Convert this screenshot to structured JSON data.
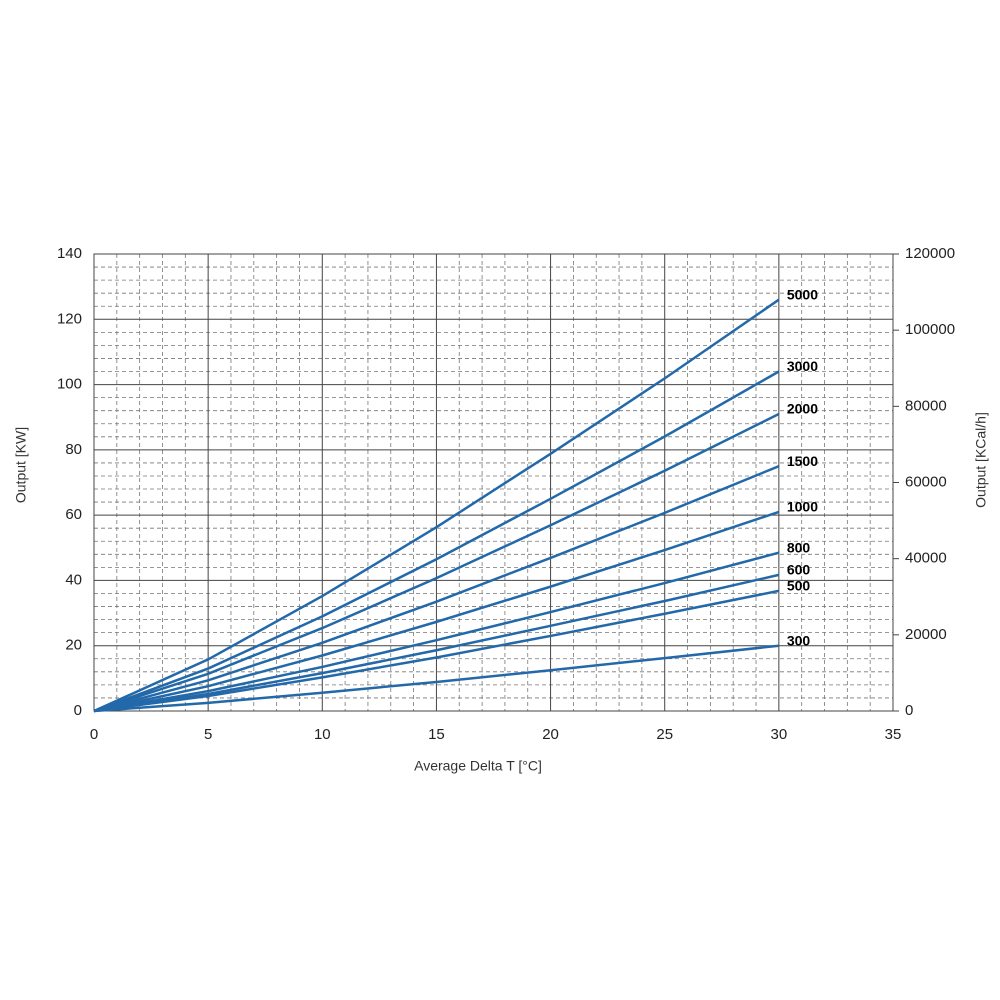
{
  "chart_data": {
    "type": "line",
    "xlabel": "Average Delta T [°C]",
    "ylabel": "Output [KW]",
    "y2label": "Output [KCal/h]",
    "x": [
      0,
      5,
      10,
      15,
      20,
      25,
      30
    ],
    "xlim": [
      0,
      35
    ],
    "xticks": [
      0,
      5,
      10,
      15,
      20,
      25,
      30,
      35
    ],
    "ylim": [
      0,
      140
    ],
    "yticks": [
      0,
      20,
      40,
      60,
      80,
      100,
      120,
      140
    ],
    "y2lim": [
      0,
      120000
    ],
    "y2ticks": [
      0,
      20000,
      40000,
      60000,
      80000,
      100000,
      120000
    ],
    "grid": true,
    "series": [
      {
        "name": "5000",
        "color": "#2369aa",
        "values": [
          0,
          15.8,
          35.2,
          56.3,
          78.8,
          101.9,
          126
        ]
      },
      {
        "name": "3000",
        "color": "#2369aa",
        "values": [
          0,
          13.0,
          29.0,
          46.5,
          65.0,
          84.1,
          104
        ]
      },
      {
        "name": "2000",
        "color": "#2369aa",
        "values": [
          0,
          11.4,
          25.4,
          40.7,
          56.9,
          73.6,
          91
        ]
      },
      {
        "name": "1500",
        "color": "#2369aa",
        "values": [
          0,
          9.4,
          20.9,
          33.5,
          46.9,
          60.7,
          75
        ]
      },
      {
        "name": "1000",
        "color": "#2369aa",
        "values": [
          0,
          7.6,
          17.0,
          27.3,
          38.1,
          49.3,
          61
        ]
      },
      {
        "name": "800",
        "color": "#2369aa",
        "values": [
          0,
          6.1,
          13.5,
          21.7,
          30.3,
          39.2,
          48.5
        ]
      },
      {
        "name": "600",
        "color": "#2369aa",
        "values": [
          0,
          5.2,
          11.6,
          18.6,
          26.1,
          33.7,
          41.7
        ]
      },
      {
        "name": "500",
        "color": "#2369aa",
        "values": [
          0,
          4.6,
          10.3,
          16.4,
          23.0,
          29.8,
          36.8
        ]
      },
      {
        "name": "300",
        "color": "#2369aa",
        "values": [
          0,
          2.5,
          5.6,
          8.9,
          12.5,
          16.2,
          20
        ]
      }
    ]
  }
}
